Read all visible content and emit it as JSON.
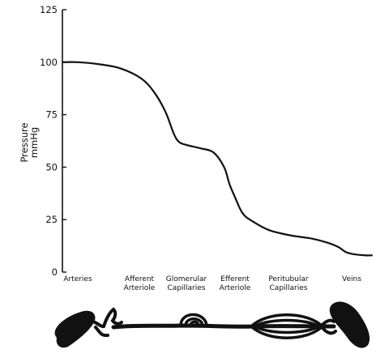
{
  "chart_data": {
    "type": "line",
    "title": "",
    "ylabel": "Pressure mmHg",
    "ylabel_lines": [
      "Pressure",
      "mmHg"
    ],
    "xlabel": "",
    "ylim": [
      0,
      125
    ],
    "yticks": [
      0,
      25,
      50,
      75,
      100,
      125
    ],
    "grid": false,
    "categories": [
      {
        "label": [
          "Arteries"
        ],
        "x": 0
      },
      {
        "label": [
          "Afferent",
          "Arteriole"
        ],
        "x": 1
      },
      {
        "label": [
          "Glomerular",
          "Capillaries"
        ],
        "x": 2
      },
      {
        "label": [
          "Efferent",
          "Arteriole"
        ],
        "x": 3
      },
      {
        "label": [
          "Peritubular",
          "Capillaries"
        ],
        "x": 4
      },
      {
        "label": [
          "Veins"
        ],
        "x": 5
      }
    ],
    "xlim": [
      -0.3,
      5.6
    ],
    "series": [
      {
        "x": [
          -0.3,
          0.0,
          0.4,
          0.8,
          1.2,
          1.45,
          1.65,
          1.8,
          1.9,
          2.05,
          2.3,
          2.55,
          2.75,
          2.85,
          2.95,
          3.1,
          3.3,
          3.6,
          4.0,
          4.4,
          4.7,
          4.9,
          5.05,
          5.2,
          5.4,
          5.55
        ],
        "y": [
          100,
          100,
          99,
          97,
          92,
          85,
          76,
          66,
          62,
          60.5,
          59,
          57,
          50,
          42,
          36,
          28,
          24,
          20,
          17.5,
          16,
          14,
          12,
          9.5,
          8.5,
          8,
          8
        ]
      }
    ]
  },
  "vessel_diagram": {
    "icon": "nephron-vessel-diagram"
  }
}
